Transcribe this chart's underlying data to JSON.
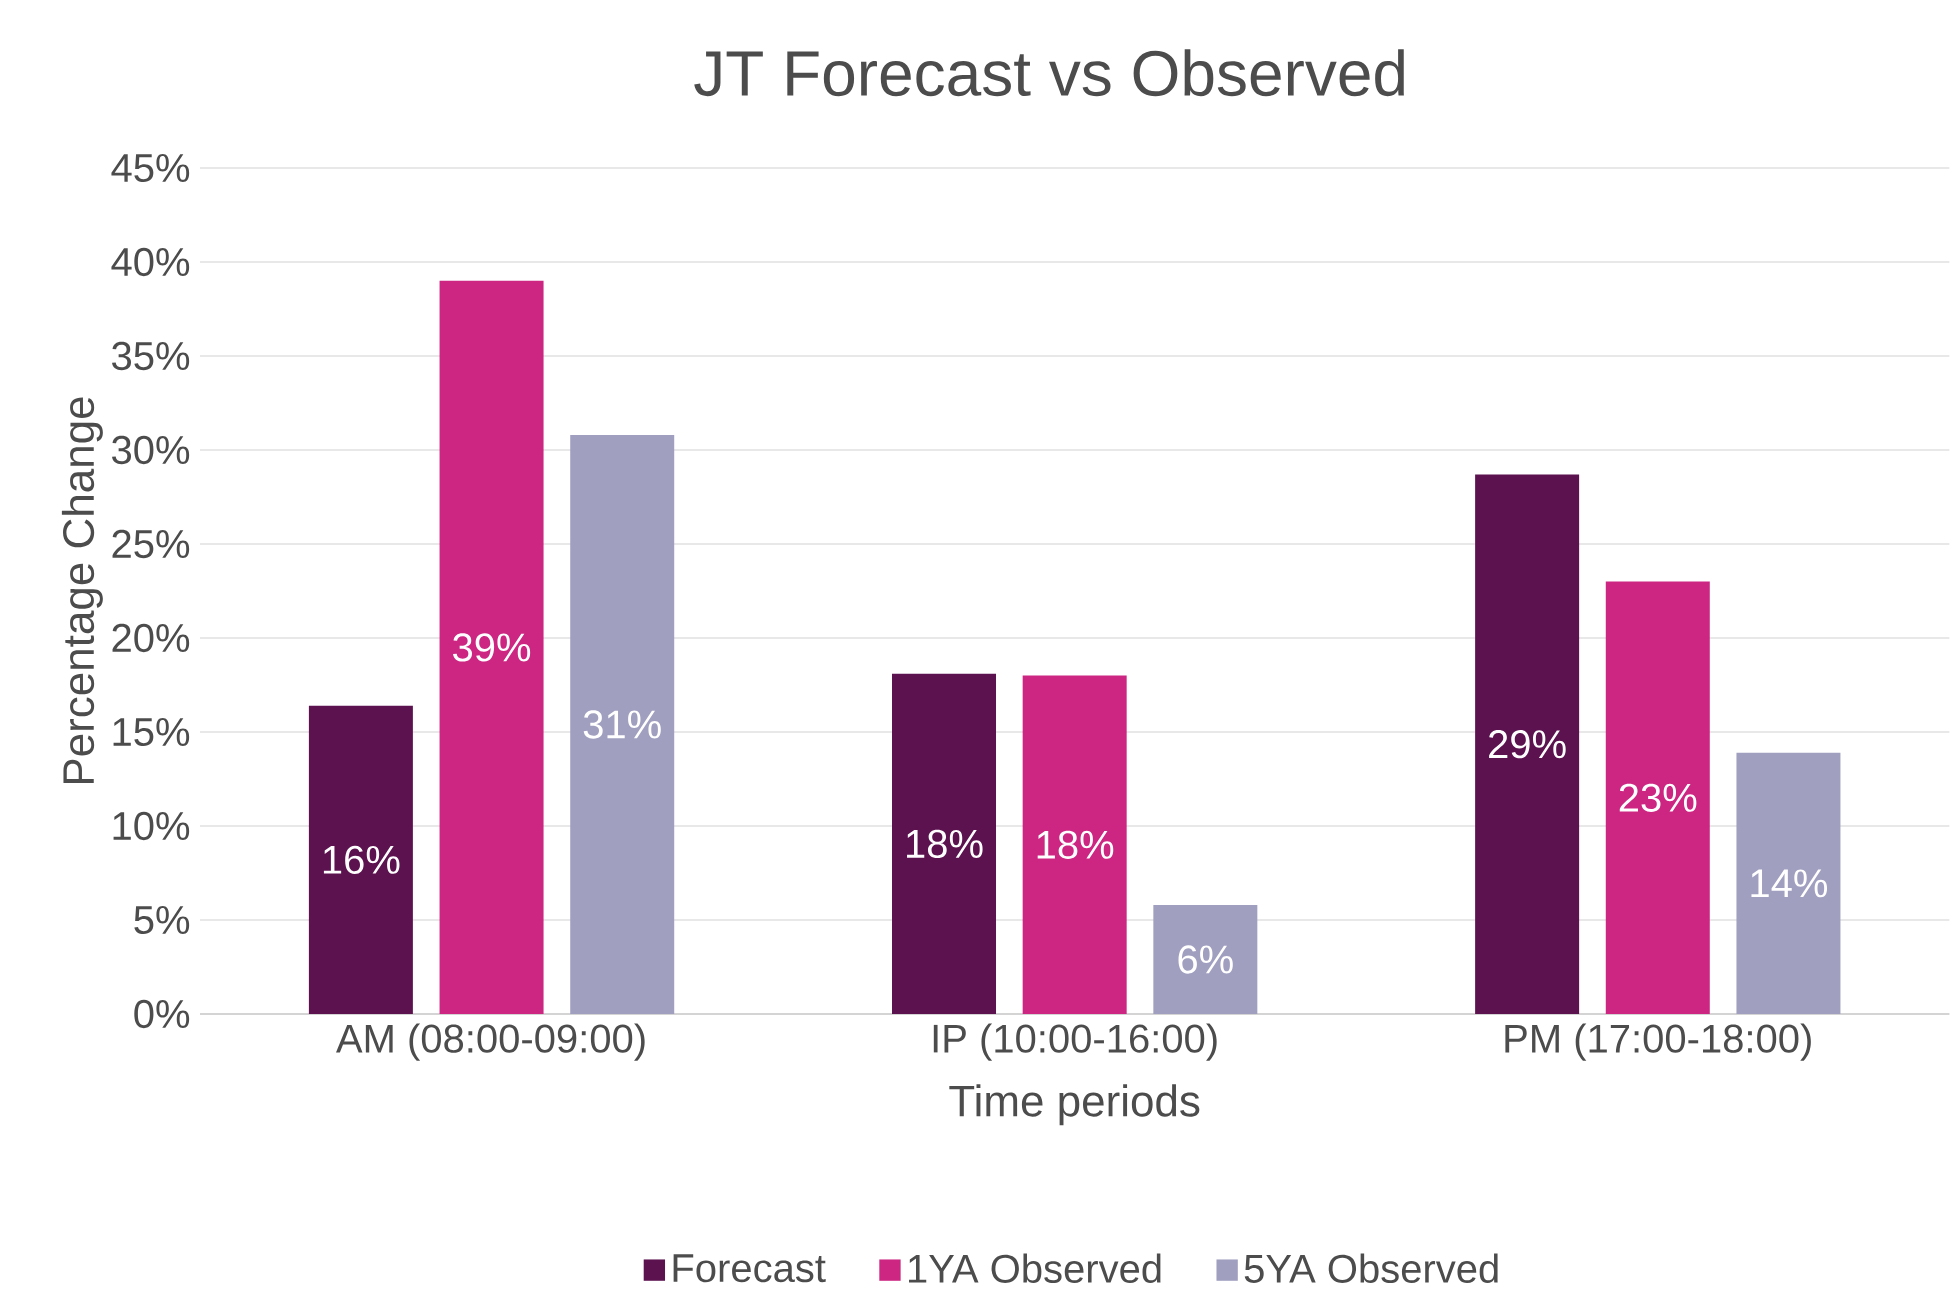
{
  "chart_data": {
    "type": "bar",
    "title": "JT  Forecast vs Observed",
    "xlabel": "Time periods",
    "ylabel": "Percentage Change",
    "categories": [
      "AM (08:00-09:00)",
      "IP (10:00-16:00)",
      "PM (17:00-18:00)"
    ],
    "series": [
      {
        "name": "Forecast",
        "color": "#5c124f",
        "values": [
          16.4,
          18.1,
          28.7
        ],
        "value_labels": [
          "16%",
          "18%",
          "29%"
        ]
      },
      {
        "name": "1YA Observed",
        "color": "#cc2682",
        "values": [
          39.0,
          18.0,
          23.0
        ],
        "value_labels": [
          "39%",
          "18%",
          "23%"
        ]
      },
      {
        "name": "5YA Observed",
        "color": "#a09fc0",
        "values": [
          30.8,
          5.8,
          13.9
        ],
        "value_labels": [
          "31%",
          "6%",
          "14%"
        ]
      }
    ],
    "ylim": [
      0,
      45
    ],
    "yticks": [
      {
        "value": 0,
        "label": "0%"
      },
      {
        "value": 5,
        "label": "5%"
      },
      {
        "value": 10,
        "label": "10%"
      },
      {
        "value": 15,
        "label": "15%"
      },
      {
        "value": 20,
        "label": "20%"
      },
      {
        "value": 25,
        "label": "25%"
      },
      {
        "value": 30,
        "label": "30%"
      },
      {
        "value": 35,
        "label": "35%"
      },
      {
        "value": 40,
        "label": "40%"
      },
      {
        "value": 45,
        "label": "45%"
      }
    ],
    "grid": "y",
    "legend": "bottom"
  }
}
